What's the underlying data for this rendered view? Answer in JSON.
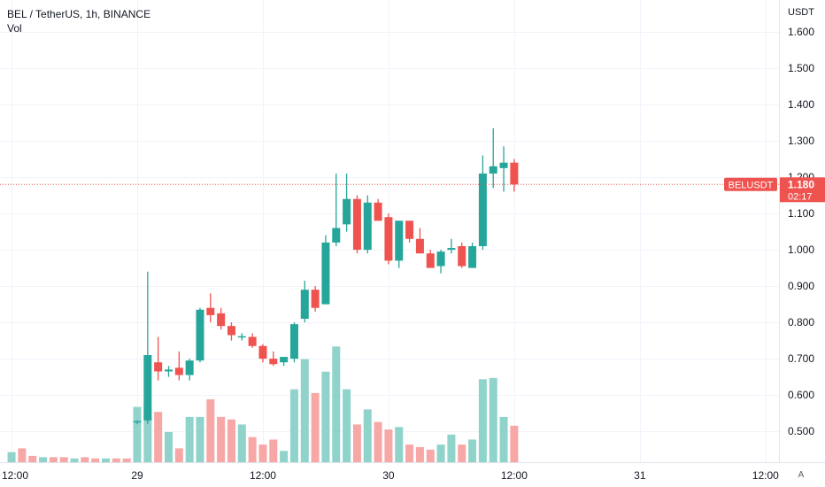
{
  "legend": {
    "symbol_line": "BEL / TetherUS, 1h, BINANCE",
    "volume_label": "Vol"
  },
  "price_axis": {
    "unit_label": "USDT"
  },
  "last_price": {
    "ticker_label": "BELUSDT",
    "price_label": "1.180",
    "countdown": "02:17",
    "color": "#ef5350"
  },
  "auto_button": "A",
  "colors": {
    "up": "#26a69a",
    "down": "#ef5350",
    "up_volume": "#8fd3cb",
    "down_volume": "#f6a7a6",
    "grid": "#f0f3fa"
  },
  "chart_data": {
    "type": "candlestick",
    "y_ticks": [
      0.5,
      0.6,
      0.7,
      0.8,
      0.9,
      1.0,
      1.1,
      1.2,
      1.3,
      1.4,
      1.5,
      1.6
    ],
    "y_tick_labels": [
      "0.500",
      "0.600",
      "0.700",
      "0.800",
      "0.900",
      "1.000",
      "1.100",
      "1.200",
      "1.300",
      "1.400",
      "1.500",
      "1.600"
    ],
    "x_tick_labels": [
      "12:00",
      "29",
      "12:00",
      "30",
      "12:00",
      "31",
      "12:00"
    ],
    "x_tick_index": [
      -12,
      0,
      12,
      24,
      36,
      48,
      60
    ],
    "ylim": [
      0.41,
      1.66
    ],
    "grid": true,
    "last_price": 1.18,
    "candles": [
      {
        "i": 0,
        "o": 0.525,
        "h": 0.53,
        "l": 0.52,
        "c": 0.528,
        "v": 44
      },
      {
        "i": 1,
        "o": 0.53,
        "h": 0.94,
        "l": 0.52,
        "c": 0.71,
        "v": 42
      },
      {
        "i": 2,
        "o": 0.69,
        "h": 0.76,
        "l": 0.64,
        "c": 0.665,
        "v": 40
      },
      {
        "i": 3,
        "o": 0.665,
        "h": 0.68,
        "l": 0.65,
        "c": 0.67,
        "v": 24
      },
      {
        "i": 4,
        "o": 0.675,
        "h": 0.72,
        "l": 0.64,
        "c": 0.655,
        "v": 11
      },
      {
        "i": 5,
        "o": 0.655,
        "h": 0.7,
        "l": 0.64,
        "c": 0.695,
        "v": 36
      },
      {
        "i": 6,
        "o": 0.695,
        "h": 0.84,
        "l": 0.69,
        "c": 0.835,
        "v": 36
      },
      {
        "i": 7,
        "o": 0.84,
        "h": 0.88,
        "l": 0.8,
        "c": 0.82,
        "v": 50
      },
      {
        "i": 8,
        "o": 0.825,
        "h": 0.84,
        "l": 0.78,
        "c": 0.79,
        "v": 36
      },
      {
        "i": 9,
        "o": 0.79,
        "h": 0.8,
        "l": 0.75,
        "c": 0.765,
        "v": 34
      },
      {
        "i": 10,
        "o": 0.76,
        "h": 0.77,
        "l": 0.75,
        "c": 0.762,
        "v": 30
      },
      {
        "i": 11,
        "o": 0.76,
        "h": 0.77,
        "l": 0.73,
        "c": 0.735,
        "v": 20
      },
      {
        "i": 12,
        "o": 0.735,
        "h": 0.74,
        "l": 0.69,
        "c": 0.7,
        "v": 14
      },
      {
        "i": 13,
        "o": 0.7,
        "h": 0.72,
        "l": 0.68,
        "c": 0.685,
        "v": 18
      },
      {
        "i": 14,
        "o": 0.69,
        "h": 0.7,
        "l": 0.68,
        "c": 0.705,
        "v": 9
      },
      {
        "i": 15,
        "o": 0.7,
        "h": 0.8,
        "l": 0.69,
        "c": 0.795,
        "v": 58
      },
      {
        "i": 16,
        "o": 0.81,
        "h": 0.915,
        "l": 0.8,
        "c": 0.89,
        "v": 82
      },
      {
        "i": 17,
        "o": 0.89,
        "h": 0.9,
        "l": 0.83,
        "c": 0.84,
        "v": 55
      },
      {
        "i": 18,
        "o": 0.85,
        "h": 1.04,
        "l": 0.85,
        "c": 1.02,
        "v": 72
      },
      {
        "i": 19,
        "o": 1.02,
        "h": 1.21,
        "l": 1.01,
        "c": 1.06,
        "v": 92
      },
      {
        "i": 20,
        "o": 1.07,
        "h": 1.21,
        "l": 1.05,
        "c": 1.14,
        "v": 58
      },
      {
        "i": 21,
        "o": 1.14,
        "h": 1.15,
        "l": 0.99,
        "c": 1.0,
        "v": 30
      },
      {
        "i": 22,
        "o": 1.0,
        "h": 1.15,
        "l": 0.99,
        "c": 1.13,
        "v": 42
      },
      {
        "i": 23,
        "o": 1.13,
        "h": 1.14,
        "l": 1.08,
        "c": 1.08,
        "v": 32
      },
      {
        "i": 24,
        "o": 1.09,
        "h": 1.1,
        "l": 0.96,
        "c": 0.97,
        "v": 26
      },
      {
        "i": 25,
        "o": 0.97,
        "h": 1.08,
        "l": 0.95,
        "c": 1.08,
        "v": 28
      },
      {
        "i": 26,
        "o": 1.08,
        "h": 1.08,
        "l": 1.02,
        "c": 1.03,
        "v": 14
      },
      {
        "i": 27,
        "o": 1.03,
        "h": 1.06,
        "l": 0.99,
        "c": 0.99,
        "v": 12
      },
      {
        "i": 28,
        "o": 0.99,
        "h": 1.0,
        "l": 0.95,
        "c": 0.95,
        "v": 10
      },
      {
        "i": 29,
        "o": 0.955,
        "h": 1.0,
        "l": 0.935,
        "c": 0.995,
        "v": 14
      },
      {
        "i": 30,
        "o": 1.0,
        "h": 1.03,
        "l": 0.99,
        "c": 1.005,
        "v": 22
      },
      {
        "i": 31,
        "o": 1.01,
        "h": 1.02,
        "l": 0.95,
        "c": 0.955,
        "v": 14
      },
      {
        "i": 32,
        "o": 0.95,
        "h": 1.02,
        "l": 0.95,
        "c": 1.01,
        "v": 18
      },
      {
        "i": 33,
        "o": 1.01,
        "h": 1.26,
        "l": 1.0,
        "c": 1.21,
        "v": 66
      },
      {
        "i": 34,
        "o": 1.21,
        "h": 1.335,
        "l": 1.17,
        "c": 1.23,
        "v": 67
      },
      {
        "i": 35,
        "o": 1.225,
        "h": 1.285,
        "l": 1.16,
        "c": 1.24,
        "v": 36
      },
      {
        "i": 36,
        "o": 1.24,
        "h": 1.25,
        "l": 1.16,
        "c": 1.18,
        "v": 29
      }
    ],
    "pre_volume": [
      8,
      11,
      5,
      4,
      4,
      4,
      3,
      4,
      3,
      3,
      3,
      3
    ]
  }
}
